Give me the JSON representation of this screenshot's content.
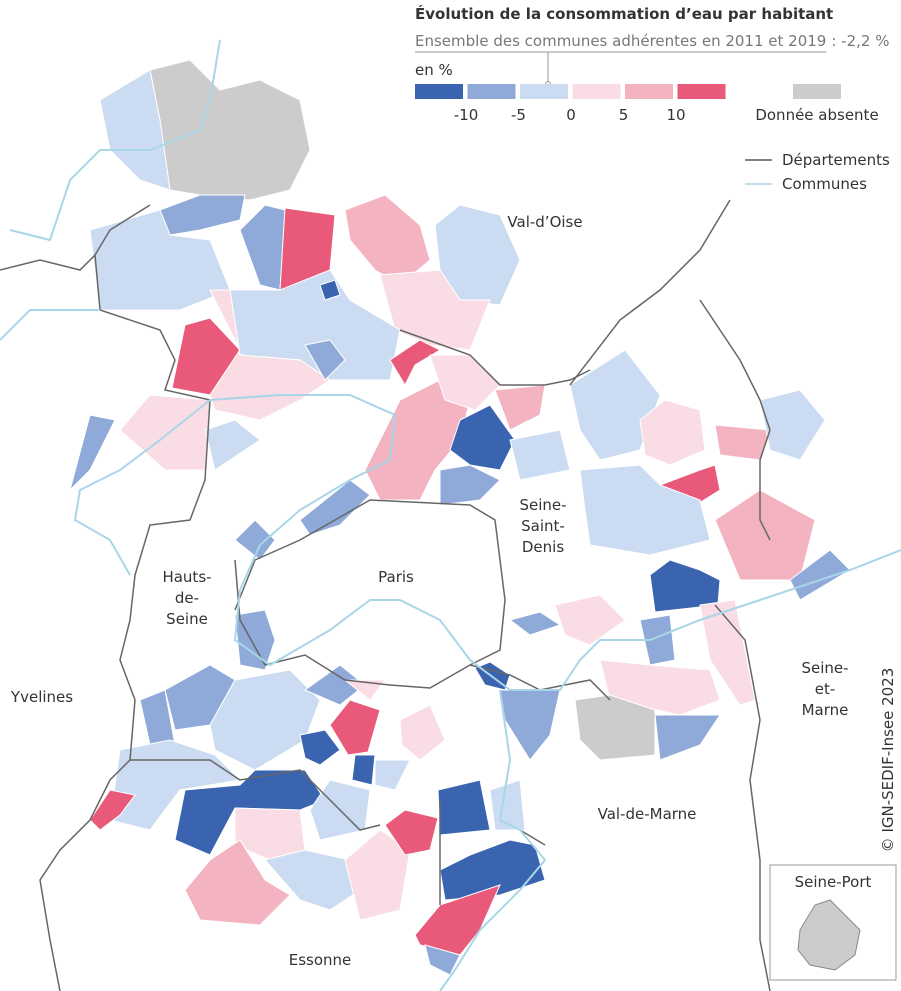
{
  "title": "Évolution de la consommation d’eau par habitant",
  "subtitle": "Ensemble des communes adhérentes en 2011 et 2019",
  "subtitle_value": ": -2,2 %",
  "legend": {
    "unit": "en %",
    "colors": [
      "#3a64b0",
      "#8fa9d8",
      "#cbdcf2",
      "#f9dce4",
      "#f3b3c0",
      "#e8597a"
    ],
    "ticks": [
      "-10",
      "-5",
      "0",
      "5",
      "10"
    ],
    "missing": {
      "label": "Donnée absente",
      "color": "#cccccc"
    },
    "lines": [
      {
        "label": "Départements",
        "color": "#555555"
      },
      {
        "label": "Communes",
        "color": "#a8d6e8"
      }
    ]
  },
  "places": [
    {
      "lines": [
        "Val-d’Oise"
      ]
    },
    {
      "lines": [
        "Seine-",
        "Saint-",
        "Denis"
      ]
    },
    {
      "lines": [
        "Paris"
      ]
    },
    {
      "lines": [
        "Hauts-",
        "de-",
        "Seine"
      ]
    },
    {
      "lines": [
        "Yvelines"
      ]
    },
    {
      "lines": [
        "Seine-",
        "et-",
        "Marne"
      ]
    },
    {
      "lines": [
        "Val-de-Marne"
      ]
    },
    {
      "lines": [
        "Essonne"
      ]
    }
  ],
  "inset": {
    "label": "Seine-Port"
  },
  "credit": "© IGN-SEDIF-Insee 2023"
}
